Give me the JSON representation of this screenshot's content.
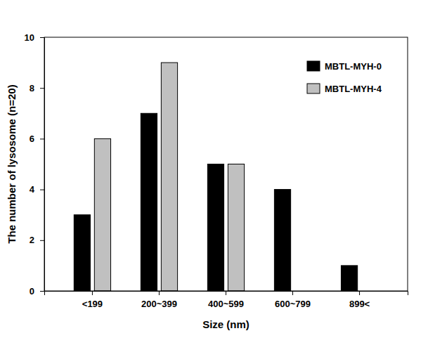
{
  "chart_data": {
    "type": "bar",
    "x_label": "Size (nm)",
    "y_label": "The number of lysosome (n=20)",
    "categories": [
      "<199",
      "200~399",
      "400~599",
      "600~799",
      "899<"
    ],
    "series": [
      {
        "name": "MBTL-MYH-0",
        "color": "#000000",
        "values": [
          3,
          7,
          5,
          4,
          1
        ]
      },
      {
        "name": "MBTL-MYH-4",
        "color": "#c0c0c0",
        "values": [
          6,
          9,
          5,
          0,
          0
        ]
      }
    ],
    "ylim": [
      0,
      10
    ],
    "yticks": [
      0,
      2,
      4,
      6,
      8,
      10
    ],
    "legend": "upper right"
  }
}
